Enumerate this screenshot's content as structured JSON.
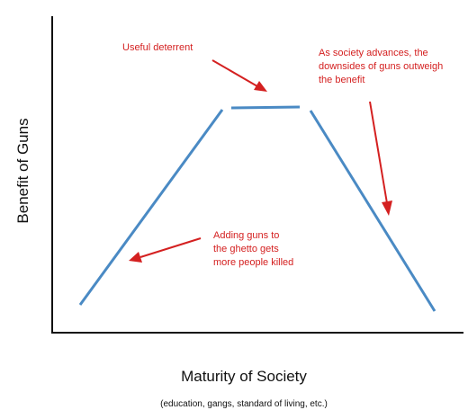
{
  "axes": {
    "y_label": "Benefit of Guns",
    "x_label": "Maturity of Society",
    "x_sublabel": "(education, gangs, standard of living, etc.)"
  },
  "annotations": {
    "deterrent": [
      "Useful deterrent"
    ],
    "advances": [
      "As society advances, the",
      "downsides of guns outweigh",
      "the benefit"
    ],
    "ghetto": [
      "Adding guns to",
      "the ghetto gets",
      "more people killed"
    ]
  },
  "colors": {
    "curve": "#4a8ac4",
    "annotation": "#d42020",
    "axis": "#111111"
  }
}
